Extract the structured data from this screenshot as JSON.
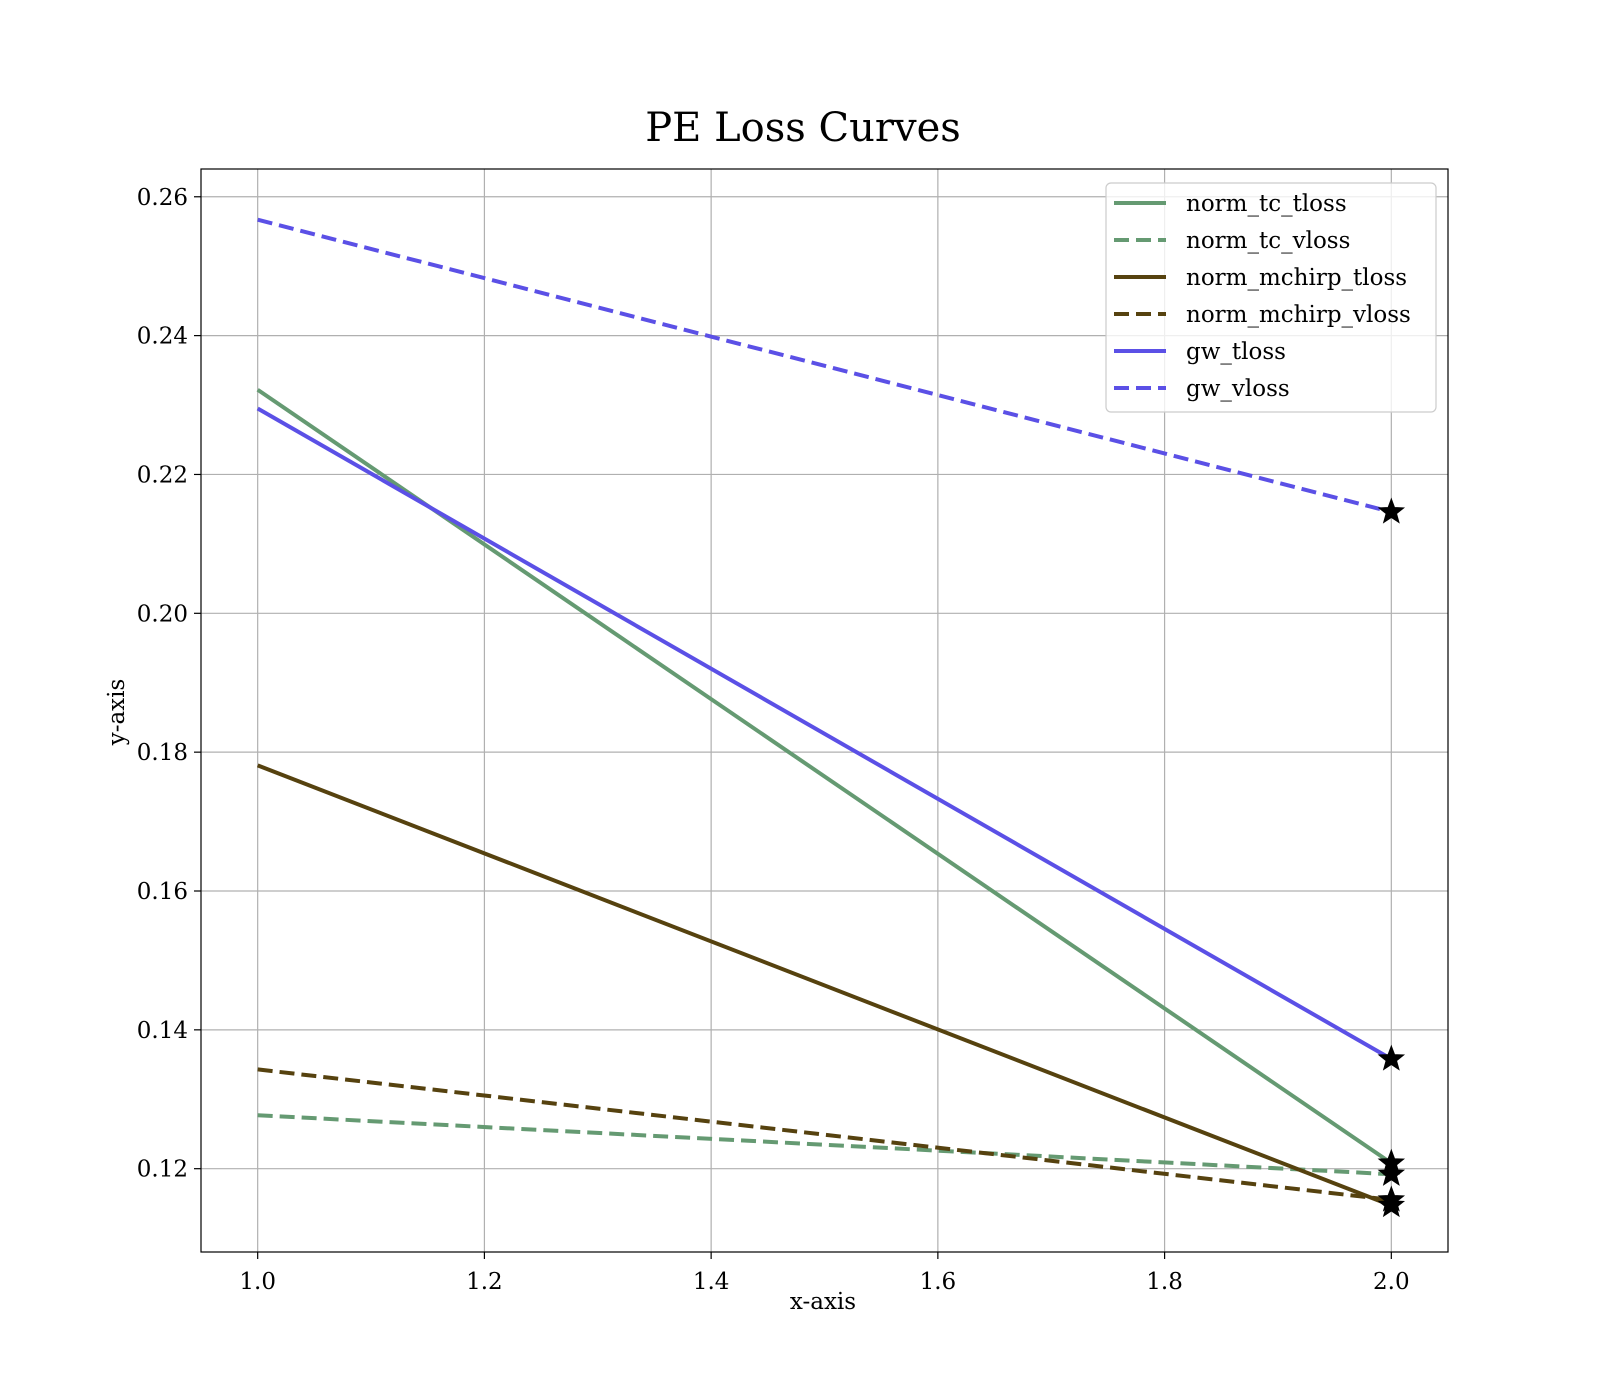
{
  "chart_data": {
    "type": "line",
    "title": "PE Loss Curves",
    "xlabel": "x-axis",
    "ylabel": "y-axis",
    "xlim": [
      0.95,
      2.05
    ],
    "ylim": [
      0.108,
      0.264
    ],
    "xticks": [
      1.0,
      1.2,
      1.4,
      1.6,
      1.8,
      2.0
    ],
    "xtick_labels": [
      "1.0",
      "1.2",
      "1.4",
      "1.6",
      "1.8",
      "2.0"
    ],
    "yticks": [
      0.12,
      0.14,
      0.16,
      0.18,
      0.2,
      0.22,
      0.24,
      0.26
    ],
    "ytick_labels": [
      "0.12",
      "0.14",
      "0.16",
      "0.18",
      "0.20",
      "0.22",
      "0.24",
      "0.26"
    ],
    "grid": true,
    "legend_position": "top-right",
    "final_point_marker": "star",
    "series": [
      {
        "name": "norm_tc_tloss",
        "color": "#659a72",
        "style": "solid",
        "x": [
          1,
          2
        ],
        "y": [
          0.2322,
          0.1208
        ]
      },
      {
        "name": "norm_tc_vloss",
        "color": "#659a72",
        "style": "dashed",
        "x": [
          1,
          2
        ],
        "y": [
          0.1277,
          0.1192
        ]
      },
      {
        "name": "norm_mchirp_tloss",
        "color": "#56420f",
        "style": "solid",
        "x": [
          1,
          2
        ],
        "y": [
          0.1781,
          0.1147
        ]
      },
      {
        "name": "norm_mchirp_vloss",
        "color": "#56420f",
        "style": "dashed",
        "x": [
          1,
          2
        ],
        "y": [
          0.1343,
          0.1155
        ]
      },
      {
        "name": "gw_tloss",
        "color": "#5b50e6",
        "style": "solid",
        "x": [
          1,
          2
        ],
        "y": [
          0.2295,
          0.1358
        ]
      },
      {
        "name": "gw_vloss",
        "color": "#5b50e6",
        "style": "dashed",
        "x": [
          1,
          2
        ],
        "y": [
          0.2567,
          0.2146
        ]
      }
    ]
  }
}
